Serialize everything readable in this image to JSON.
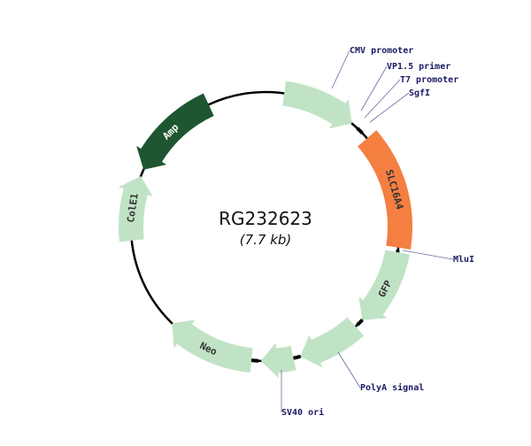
{
  "plasmid": {
    "name": "RG232623",
    "size": "(7.7 kb)"
  },
  "features": [
    {
      "name": "",
      "color": "#c1e3c5",
      "text_color": "#333333",
      "id": "cmv"
    },
    {
      "name": "SLC16A4",
      "color": "#f47f41",
      "text_color": "#333333",
      "id": "insert"
    },
    {
      "name": "GFP",
      "color": "#c1e3c5",
      "text_color": "#333333",
      "id": "gfp"
    },
    {
      "name": "",
      "color": "#c1e3c5",
      "text_color": "#333333",
      "id": "polya"
    },
    {
      "name": "",
      "color": "#c1e3c5",
      "text_color": "#333333",
      "id": "sv40"
    },
    {
      "name": "Neo",
      "color": "#c1e3c5",
      "text_color": "#333333",
      "id": "neo"
    },
    {
      "name": "ColE1",
      "color": "#c1e3c5",
      "text_color": "#333333",
      "id": "cole1"
    },
    {
      "name": "Amp",
      "color": "#1d5631",
      "text_color": "#ffffff",
      "id": "amp"
    }
  ],
  "sites": [
    {
      "label": "CMV promoter"
    },
    {
      "label": "VP1.5 primer"
    },
    {
      "label": "T7 promoter"
    },
    {
      "label": "SgfI"
    },
    {
      "label": "MluI"
    },
    {
      "label": "PolyA signal"
    },
    {
      "label": "SV40 ori"
    }
  ]
}
